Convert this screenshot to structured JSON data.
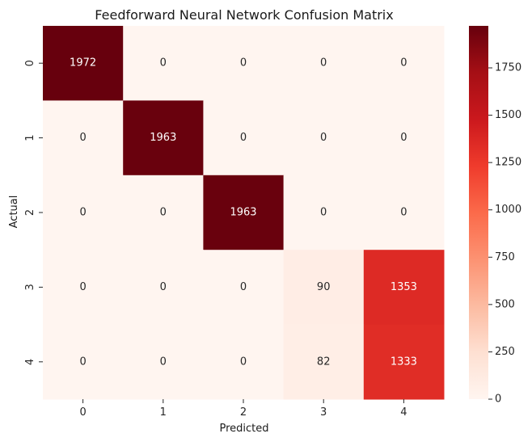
{
  "chart_data": {
    "type": "heatmap",
    "title": "Feedforward Neural Network Confusion Matrix",
    "xlabel": "Predicted",
    "ylabel": "Actual",
    "x_categories": [
      "0",
      "1",
      "2",
      "3",
      "4"
    ],
    "y_categories": [
      "0",
      "1",
      "2",
      "3",
      "4"
    ],
    "values": [
      [
        1972,
        0,
        0,
        0,
        0
      ],
      [
        0,
        1963,
        0,
        0,
        0
      ],
      [
        0,
        0,
        1963,
        0,
        0
      ],
      [
        0,
        0,
        0,
        90,
        1353
      ],
      [
        0,
        0,
        0,
        82,
        1333
      ]
    ],
    "colormap": "Reds",
    "colormap_stops": [
      "#fff5f0",
      "#fee0d2",
      "#fcbba1",
      "#fc9272",
      "#fb6a4a",
      "#ef3b2c",
      "#cb181d",
      "#a50f15",
      "#67000d"
    ],
    "vmin": 0,
    "vmax": 1972,
    "colorbar_ticks": [
      "0",
      "250",
      "500",
      "750",
      "1000",
      "1250",
      "1500",
      "1750"
    ],
    "annotation_light_color": "#ffffff",
    "annotation_dark_color": "#262626"
  }
}
